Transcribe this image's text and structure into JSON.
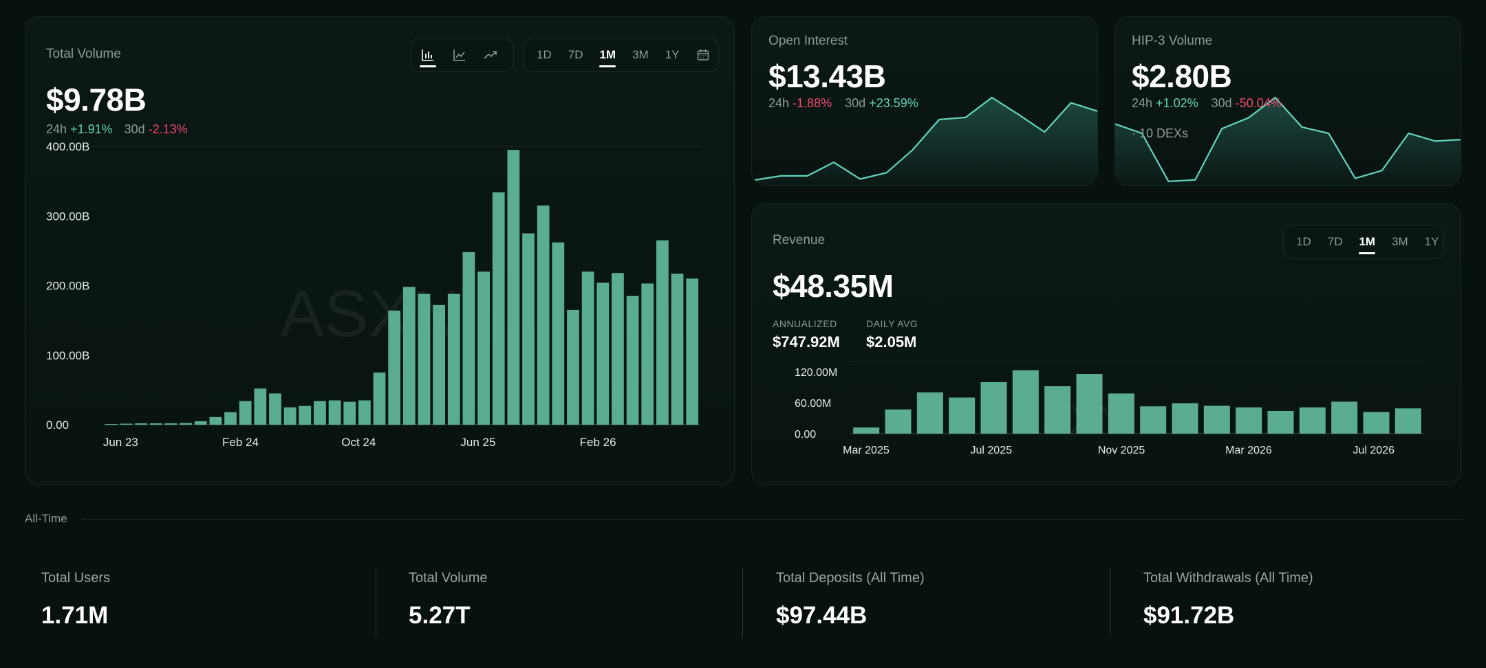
{
  "volume_card": {
    "title": "Total Volume",
    "value": "$9.78B",
    "change_24h_label": "24h",
    "change_24h": "+1.91%",
    "change_30d_label": "30d",
    "change_30d": "-2.13%",
    "chart_types": [
      "bar-chart-icon",
      "line-chart-icon",
      "trend-icon"
    ],
    "ranges": [
      "1D",
      "7D",
      "1M",
      "3M",
      "1Y"
    ],
    "active_range": "1M",
    "watermark": "ASXN"
  },
  "open_interest": {
    "title": "Open Interest",
    "value": "$13.43B",
    "change_24h_label": "24h",
    "change_24h": "-1.88%",
    "change_30d_label": "30d",
    "change_30d": "+23.59%"
  },
  "hip3": {
    "title": "HIP-3 Volume",
    "value": "$2.80B",
    "change_24h_label": "24h",
    "change_24h": "+1.02%",
    "change_30d_label": "30d",
    "change_30d": "-50.04%",
    "dex_count": "· 10 DEXs"
  },
  "revenue": {
    "title": "Revenue",
    "value": "$48.35M",
    "annualized_label": "ANNUALIZED",
    "annualized_value": "$747.92M",
    "daily_avg_label": "DAILY AVG",
    "daily_avg_value": "$2.05M",
    "ranges": [
      "1D",
      "7D",
      "1M",
      "3M",
      "1Y"
    ],
    "active_range": "1M",
    "watermark": "ASXN"
  },
  "all_time": {
    "section_label": "All-Time",
    "stats": [
      {
        "title": "Total Users",
        "value": "1.71M"
      },
      {
        "title": "Total Volume",
        "value": "5.27T"
      },
      {
        "title": "Total Deposits (All Time)",
        "value": "$97.44B"
      },
      {
        "title": "Total Withdrawals (All Time)",
        "value": "$91.72B"
      }
    ]
  },
  "colors": {
    "bar": "#5aad92",
    "line": "#63d6bf",
    "positive": "#5fd3b2",
    "negative": "#f04a6a"
  },
  "chart_data": [
    {
      "type": "bar",
      "name": "total-volume",
      "ylim": [
        0,
        400
      ],
      "ytick_values": [
        0,
        100,
        200,
        300,
        400
      ],
      "ytick_labels": [
        "0.00",
        "100.00B",
        "200.00B",
        "300.00B",
        "400.00B"
      ],
      "xtick_labels": [
        "Jun 23",
        "Feb 24",
        "Oct 24",
        "Jun 25",
        "Feb 26"
      ],
      "xtick_index": [
        0,
        8,
        16,
        24,
        32
      ],
      "values": [
        1,
        1.5,
        2,
        2,
        2,
        2.5,
        5,
        11,
        18,
        34,
        52,
        45,
        25,
        27,
        34,
        35,
        33,
        35,
        75,
        164,
        198,
        188,
        172,
        188,
        248,
        220,
        334,
        395,
        275,
        315,
        262,
        165,
        220,
        204,
        218,
        185,
        203,
        265,
        217,
        210
      ]
    },
    {
      "type": "area",
      "name": "open-interest",
      "values": [
        9.5,
        9.9,
        9.9,
        11.2,
        9.6,
        10.2,
        12.4,
        15.3,
        15.5,
        17.4,
        15.8,
        14.1,
        16.9,
        16.1
      ]
    },
    {
      "type": "area",
      "name": "hip3-volume",
      "values": [
        3.8,
        3.2,
        0.1,
        0.2,
        3.5,
        4.2,
        5.5,
        3.6,
        3.2,
        0.3,
        0.8,
        3.2,
        2.7,
        2.8
      ]
    },
    {
      "type": "bar",
      "name": "revenue",
      "ylim": [
        0,
        140
      ],
      "ytick_values": [
        0,
        60,
        120
      ],
      "ytick_labels": [
        "0.00",
        "60.00M",
        "120.00M"
      ],
      "xtick_labels": [
        "Mar 2025",
        "Jul 2025",
        "Nov 2025",
        "Mar 2026",
        "Jul 2026"
      ],
      "xtick_index": [
        0,
        4,
        8,
        12,
        16
      ],
      "values": [
        12,
        47,
        80,
        70,
        100,
        123,
        92,
        116,
        78,
        53,
        59,
        54,
        51,
        44,
        51,
        62,
        42,
        49
      ]
    }
  ]
}
